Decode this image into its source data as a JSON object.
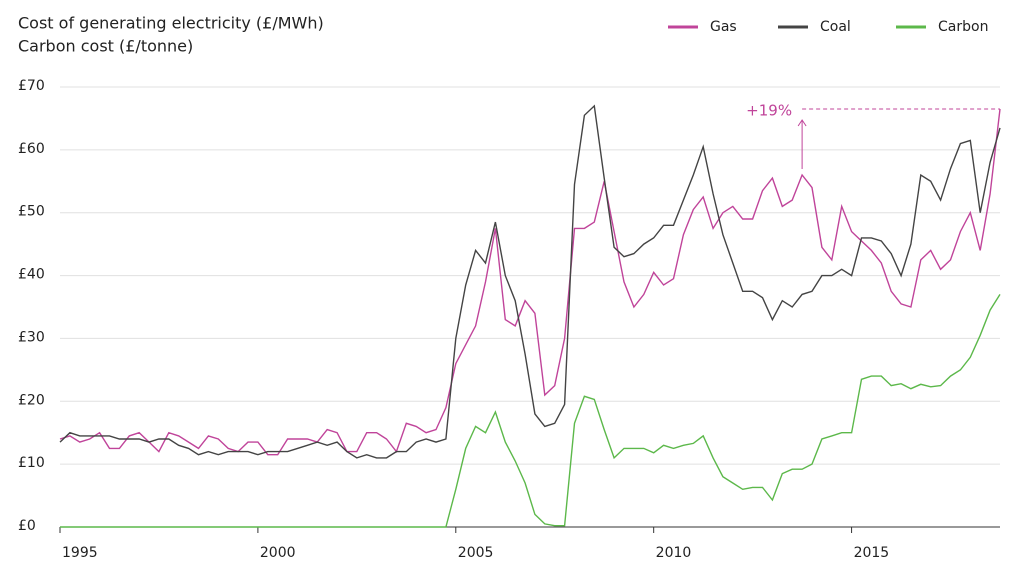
{
  "chart_data": {
    "type": "line",
    "title": "Cost of generating electricity (£/MWh)",
    "subtitle": "Carbon cost (£/tonne)",
    "x": [
      1995,
      1995.25,
      1995.5,
      1995.75,
      1996,
      1996.25,
      1996.5,
      1996.75,
      1997,
      1997.25,
      1997.5,
      1997.75,
      1998,
      1998.25,
      1998.5,
      1998.75,
      1999,
      1999.25,
      1999.5,
      1999.75,
      2000,
      2000.25,
      2000.5,
      2000.75,
      2001,
      2001.25,
      2001.5,
      2001.75,
      2002,
      2002.25,
      2002.5,
      2002.75,
      2003,
      2003.25,
      2003.5,
      2003.75,
      2004,
      2004.25,
      2004.5,
      2004.75,
      2005,
      2005.25,
      2005.5,
      2005.75,
      2006,
      2006.25,
      2006.5,
      2006.75,
      2007,
      2007.25,
      2007.5,
      2007.75,
      2008,
      2008.25,
      2008.5,
      2008.75,
      2009,
      2009.25,
      2009.5,
      2009.75,
      2010,
      2010.25,
      2010.5,
      2010.75,
      2011,
      2011.25,
      2011.5,
      2011.75,
      2012,
      2012.25,
      2012.5,
      2012.75,
      2013,
      2013.25,
      2013.5,
      2013.75,
      2014,
      2014.25,
      2014.5,
      2014.75,
      2015,
      2015.25,
      2015.5,
      2015.75,
      2016,
      2016.25,
      2016.5,
      2016.75,
      2017,
      2017.25,
      2017.5,
      2017.75,
      2018,
      2018.25,
      2018.5,
      2018.75
    ],
    "series": [
      {
        "name": "Gas",
        "color": "#c0449a",
        "values": [
          14,
          14.5,
          13.5,
          14,
          15,
          12.5,
          12.5,
          14.5,
          15,
          13.5,
          12,
          15,
          14.5,
          13.5,
          12.5,
          14.5,
          14,
          12.5,
          12,
          13.5,
          13.5,
          11.5,
          11.5,
          14,
          14,
          14,
          13.5,
          15.5,
          15,
          12,
          12,
          15,
          15,
          14,
          12,
          16.5,
          16,
          15,
          15.5,
          19,
          26,
          29,
          32,
          39,
          47.5,
          33,
          32,
          36,
          34,
          21,
          22.5,
          30,
          47.5,
          47.5,
          48.5,
          55,
          47,
          39,
          35,
          37,
          40.5,
          38.5,
          39.5,
          46.5,
          50.5,
          52.5,
          47.5,
          50,
          51,
          49,
          49,
          53.5,
          55.5,
          51,
          52,
          56,
          54,
          44.5,
          42.5,
          51,
          47,
          45.5,
          44,
          42,
          37.5,
          35.5,
          35,
          42.5,
          44,
          41,
          42.5,
          47,
          50,
          44,
          53,
          66.5
        ]
      },
      {
        "name": "Coal",
        "color": "#444444",
        "values": [
          13.5,
          15,
          14.5,
          14.5,
          14.5,
          14.5,
          14,
          14,
          14,
          13.5,
          14,
          14,
          13,
          12.5,
          11.5,
          12,
          11.5,
          12,
          12,
          12,
          11.5,
          12,
          12,
          12,
          12.5,
          13,
          13.5,
          13,
          13.5,
          12,
          11,
          11.5,
          11,
          11,
          12,
          12,
          13.5,
          14,
          13.5,
          14,
          30,
          38.5,
          44,
          42,
          48.5,
          40,
          36,
          27.5,
          18,
          16,
          16.5,
          19.5,
          54.5,
          65.5,
          67,
          55.5,
          44.5,
          43,
          43.5,
          45,
          46,
          48,
          48,
          52,
          56,
          60.5,
          53,
          46.5,
          42,
          37.5,
          37.5,
          36.5,
          33,
          36,
          35,
          37,
          37.5,
          40,
          40,
          41,
          40,
          46,
          46,
          45.5,
          43.5,
          40,
          45,
          56,
          55,
          52,
          57,
          61,
          61.5,
          50,
          58,
          63.5
        ]
      },
      {
        "name": "Carbon",
        "color": "#5cb84a",
        "values": [
          0,
          0,
          0,
          0,
          0,
          0,
          0,
          0,
          0,
          0,
          0,
          0,
          0,
          0,
          0,
          0,
          0,
          0,
          0,
          0,
          0,
          0,
          0,
          0,
          0,
          0,
          0,
          0,
          0,
          0,
          0,
          0,
          0,
          0,
          0,
          0,
          0,
          0,
          0,
          0,
          6,
          12.5,
          16,
          15,
          18.3,
          13.5,
          10.5,
          7,
          2,
          0.5,
          0.2,
          0.2,
          16.5,
          20.8,
          20.3,
          15.5,
          11,
          12.5,
          12.5,
          12.5,
          11.8,
          13,
          12.5,
          13,
          13.3,
          14.5,
          11,
          8,
          7,
          6,
          6.3,
          6.3,
          4.3,
          8.5,
          9.2,
          9.2,
          10,
          14,
          14.5,
          15,
          15,
          23.5,
          24,
          24,
          22.5,
          22.8,
          22,
          22.7,
          22.3,
          22.5,
          24,
          25,
          27,
          30.5,
          34.5,
          37
        ]
      }
    ],
    "annotation": "+19%",
    "xlim": [
      1995,
      2018.75
    ],
    "xticks": [
      1995,
      2000,
      2005,
      2010,
      2015
    ],
    "ylim": [
      0,
      70
    ],
    "yticks": [
      {
        "value": 0,
        "label": "£0"
      },
      {
        "value": 10,
        "label": "£10"
      },
      {
        "value": 20,
        "label": "£20"
      },
      {
        "value": 30,
        "label": "£30"
      },
      {
        "value": 40,
        "label": "£40"
      },
      {
        "value": 50,
        "label": "£50"
      },
      {
        "value": 60,
        "label": "£60"
      },
      {
        "value": 70,
        "label": "£70"
      }
    ],
    "grid": true,
    "legend": "top-right"
  }
}
